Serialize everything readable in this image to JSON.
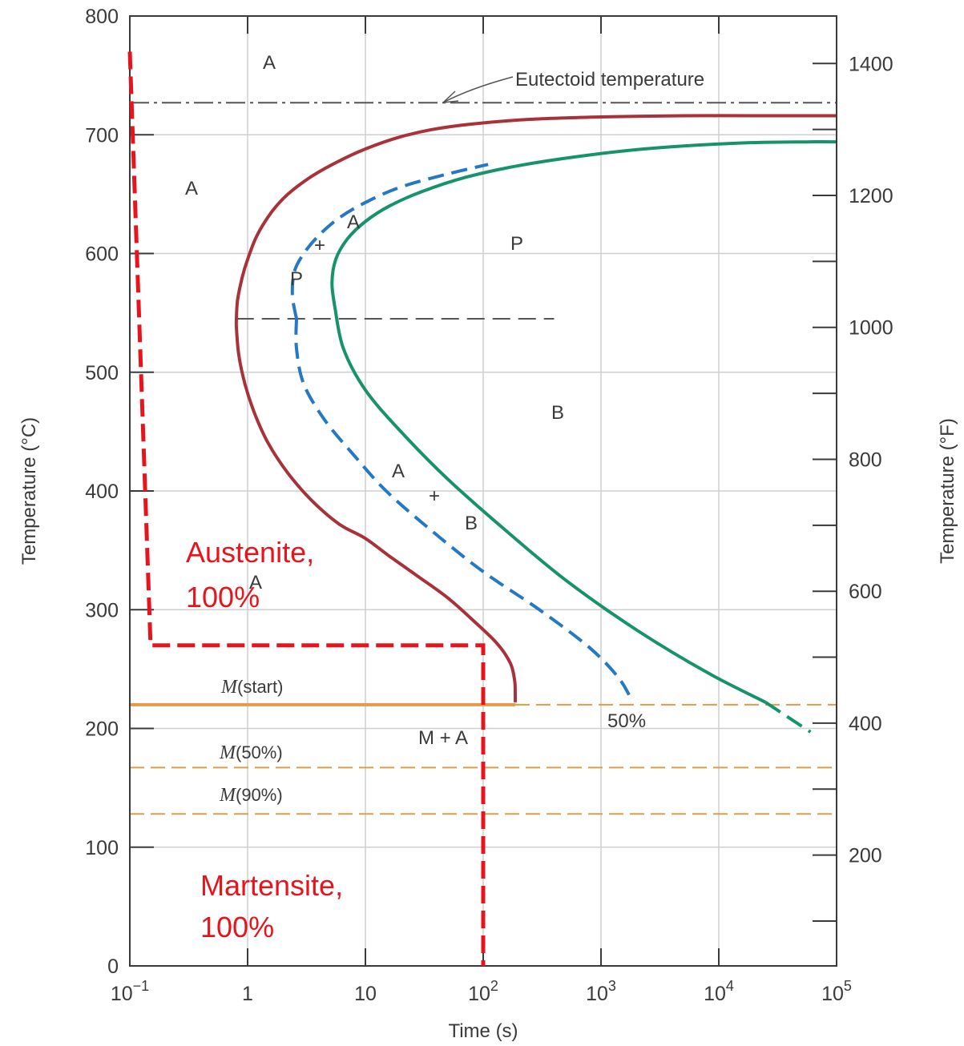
{
  "chart_data": {
    "type": "line",
    "title": "",
    "xlabel": "Time (s)",
    "ylabel": "Temperature (°C)",
    "ylabel_right": "Temperature (°F)",
    "x_scale": "log",
    "xlim": [
      0.1,
      100000
    ],
    "ylim": [
      0,
      800
    ],
    "x_ticks": [
      {
        "value": 0.1,
        "base": "10",
        "exp": "−1"
      },
      {
        "value": 1,
        "base": "1",
        "exp": ""
      },
      {
        "value": 10,
        "base": "10",
        "exp": ""
      },
      {
        "value": 100,
        "base": "10",
        "exp": "2"
      },
      {
        "value": 1000,
        "base": "10",
        "exp": "3"
      },
      {
        "value": 10000,
        "base": "10",
        "exp": "4"
      },
      {
        "value": 100000,
        "base": "10",
        "exp": "5"
      }
    ],
    "y_ticks": [
      "0",
      "100",
      "200",
      "300",
      "400",
      "500",
      "600",
      "700",
      "800"
    ],
    "y_right_ticks": [
      "200",
      "400",
      "600",
      "800",
      "1000",
      "1200",
      "1400"
    ],
    "grid": true,
    "colors": {
      "start_curve": "#a8323a",
      "fifty_curve": "#2478c4",
      "finish_curve": "#17936b",
      "martensite": "#e39a4a",
      "cooling_path": "#e8141b",
      "reference": "#555555"
    },
    "series": [
      {
        "key": "start",
        "x": [
          0.8,
          0.82,
          0.9,
          1.0,
          1.2,
          1.6,
          2.2,
          3.5,
          6,
          10,
          18,
          35,
          80,
          250,
          1000,
          5000,
          20000,
          100000
        ],
        "y": [
          540,
          560,
          580,
          595,
          615,
          635,
          650,
          665,
          678,
          688,
          697,
          704,
          709,
          713,
          715,
          716,
          716,
          716
        ]
      },
      {
        "key": "start_lower",
        "x": [
          0.8,
          0.84,
          0.95,
          1.15,
          1.5,
          2.2,
          3.5,
          6,
          10,
          16,
          28,
          50,
          80,
          130,
          170,
          185,
          187,
          187
        ],
        "y": [
          540,
          515,
          490,
          465,
          440,
          415,
          392,
          372,
          360,
          345,
          328,
          310,
          292,
          272,
          255,
          240,
          228,
          222
        ]
      },
      {
        "name": "50%",
        "key": "fifty",
        "x": [
          2.6,
          2.4,
          2.5,
          3,
          4,
          6,
          10,
          20,
          50,
          110
        ],
        "y": [
          545,
          565,
          585,
          600,
          615,
          630,
          643,
          656,
          667,
          675
        ]
      },
      {
        "key": "fifty_lower",
        "x": [
          2.6,
          2.6,
          3,
          4.5,
          8,
          15,
          35,
          100,
          300,
          800,
          1400,
          1800
        ],
        "y": [
          545,
          520,
          490,
          460,
          430,
          400,
          368,
          332,
          300,
          268,
          243,
          225
        ]
      },
      {
        "key": "finish",
        "x": [
          5.5,
          5.2,
          5.6,
          7,
          10,
          16,
          30,
          70,
          200,
          800,
          3000,
          15000,
          60000,
          100000
        ],
        "y": [
          555,
          575,
          595,
          612,
          627,
          640,
          652,
          664,
          674,
          683,
          689,
          693,
          694,
          694
        ]
      },
      {
        "key": "finish_lower",
        "x": [
          5.5,
          6.5,
          10,
          20,
          50,
          150,
          500,
          2000,
          8000,
          25000
        ],
        "y": [
          555,
          520,
          485,
          450,
          410,
          368,
          325,
          283,
          247,
          222
        ]
      },
      {
        "key": "finish_tail",
        "x": [
          25000,
          60000
        ],
        "y": [
          222,
          197
        ]
      }
    ],
    "reference_lines": {
      "eutectoid_temperature": 727,
      "nose": {
        "y": 545,
        "x_from": 0.8,
        "x_to": 400
      },
      "m_start": 220,
      "m_start_solid_to": 187,
      "m_50": 167,
      "m_90": 128
    },
    "cooling_path": {
      "x": [
        0.1,
        0.15,
        100,
        100
      ],
      "y": [
        770,
        270,
        270,
        0
      ]
    },
    "annotations": {
      "eutectoid": "Eutectoid temperature",
      "m_start_prefix": "M",
      "m_start_suffix": "(start)",
      "m_50_prefix": "M",
      "m_50_suffix": "(50%)",
      "m_90_prefix": "M",
      "m_90_suffix": "(90%)",
      "fifty_pct": "50%",
      "m_plus_a": "M + A",
      "austenite_line1": "Austenite,",
      "austenite_line2": "100%",
      "martensite_line1": "Martensite,",
      "martensite_line2": "100%"
    },
    "region_labels": {
      "a_top": "A",
      "a_left": "A",
      "a_upper_mid": "A",
      "plus_upper": "+",
      "p_upper": "P",
      "p_right": "P",
      "b_right": "B",
      "a_lower_mid": "A",
      "plus_lower": "+",
      "b_lower": "B",
      "a_low": "A"
    }
  }
}
